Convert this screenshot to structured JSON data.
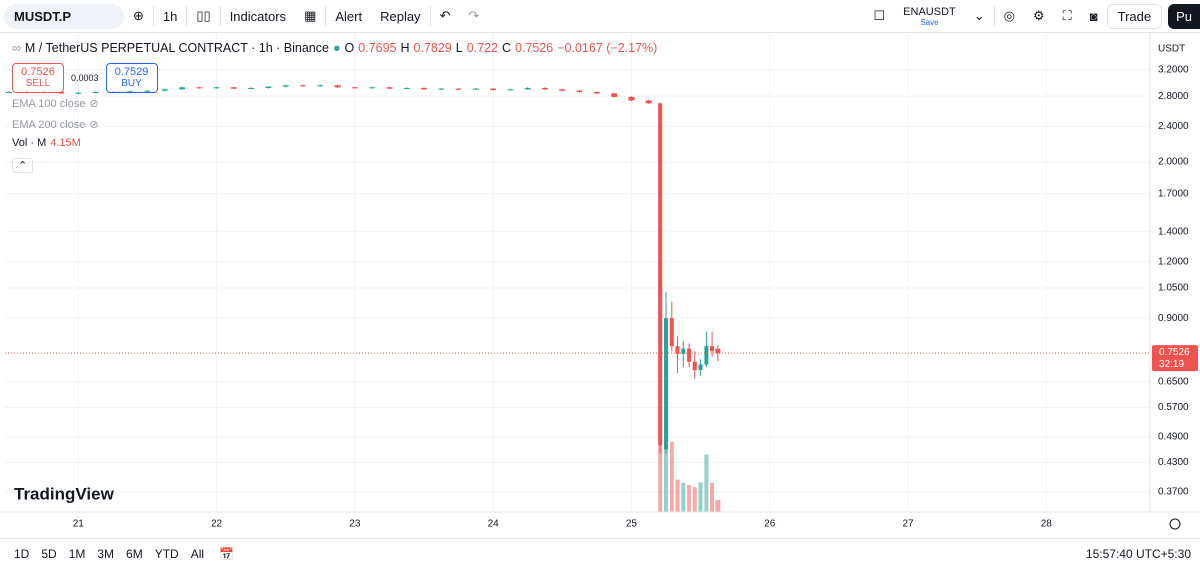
{
  "toolbar": {
    "symbol": "MUSDT.P",
    "interval": "1h",
    "indicators": "Indicators",
    "alert": "Alert",
    "replay": "Replay",
    "watch_symbol": "ENAUSDT",
    "save": "Save",
    "trade": "Trade",
    "cut_button": "Pu"
  },
  "legend": {
    "title": "M / TetherUS PERPETUAL CONTRACT · 1h · Binance",
    "ohlc_labels": [
      "O",
      "H",
      "L",
      "C"
    ],
    "change": "−0.0167 (−2.17%)",
    "sell_price": "0.7526",
    "sell": "SELL",
    "spread": "0.0003",
    "buy_price": "0.7529",
    "buy": "BUY",
    "ema100": "EMA 100 close",
    "ema200": "EMA 200 close",
    "volume": "Vol · M",
    "volume_value": "4.15M"
  },
  "currency": "USDT",
  "countdown": "32:19",
  "logo": "TradingView",
  "ranges": [
    "1D",
    "5D",
    "1M",
    "3M",
    "6M",
    "YTD",
    "All"
  ],
  "clock": "15:57:40 UTC+5:30",
  "chart_data": {
    "type": "candlestick",
    "log_scale": true,
    "grid": true,
    "up_color": "#26a69a",
    "down_color": "#ef5350",
    "xlim": [
      20.47,
      28.75
    ],
    "xticks": [
      21,
      22,
      23,
      24,
      25,
      26,
      27,
      28
    ],
    "ylim": [
      0.334,
      3.77
    ],
    "yticks": [
      {
        "value": 3.2,
        "label": "3.2000"
      },
      {
        "value": 2.8,
        "label": "2.8000"
      },
      {
        "value": 2.4,
        "label": "2.4000"
      },
      {
        "value": 2.0,
        "label": "2.0000"
      },
      {
        "value": 1.7,
        "label": "1.7000"
      },
      {
        "value": 1.4,
        "label": "1.4000"
      },
      {
        "value": 1.2,
        "label": "1.2000"
      },
      {
        "value": 1.05,
        "label": "1.0500"
      },
      {
        "value": 0.9,
        "label": "0.9000"
      },
      {
        "value": 0.65,
        "label": "0.6500"
      },
      {
        "value": 0.57,
        "label": "0.5700"
      },
      {
        "value": 0.49,
        "label": "0.4900"
      },
      {
        "value": 0.43,
        "label": "0.4300"
      },
      {
        "value": 0.37,
        "label": "0.3700"
      }
    ],
    "x": [
      20.5,
      20.625,
      20.75,
      20.875,
      21,
      21.125,
      21.25,
      21.375,
      21.5,
      21.625,
      21.75,
      21.875,
      22,
      22.125,
      22.25,
      22.375,
      22.5,
      22.625,
      22.75,
      22.875,
      23,
      23.125,
      23.25,
      23.375,
      23.5,
      23.625,
      23.75,
      23.875,
      24,
      24.125,
      24.25,
      24.375,
      24.5,
      24.625,
      24.75,
      24.875,
      25,
      25.125,
      25.208,
      25.25,
      25.292,
      25.333,
      25.375,
      25.417,
      25.458,
      25.5,
      25.542,
      25.583,
      25.625
    ],
    "open": [
      2.85,
      2.86,
      2.85,
      2.86,
      2.84,
      2.85,
      2.86,
      2.85,
      2.87,
      2.88,
      2.9,
      2.93,
      2.92,
      2.93,
      2.91,
      2.92,
      2.94,
      2.96,
      2.95,
      2.96,
      2.93,
      2.92,
      2.93,
      2.91,
      2.92,
      2.9,
      2.91,
      2.9,
      2.91,
      2.89,
      2.9,
      2.92,
      2.9,
      2.88,
      2.86,
      2.84,
      2.79,
      2.74,
      2.7,
      0.46,
      0.9,
      0.78,
      0.75,
      0.77,
      0.72,
      0.69,
      0.71,
      0.78,
      0.7695
    ],
    "high": [
      2.87,
      2.87,
      2.87,
      2.87,
      2.86,
      2.87,
      2.87,
      2.88,
      2.89,
      2.91,
      2.94,
      2.94,
      2.94,
      2.94,
      2.93,
      2.95,
      2.97,
      2.97,
      2.97,
      2.97,
      2.94,
      2.94,
      2.94,
      2.93,
      2.93,
      2.92,
      2.92,
      2.92,
      2.92,
      2.91,
      2.93,
      2.93,
      2.91,
      2.89,
      2.87,
      2.85,
      2.8,
      2.75,
      2.71,
      1.03,
      0.98,
      0.82,
      0.8,
      0.79,
      0.76,
      0.73,
      0.84,
      0.84,
      0.7829
    ],
    "low": [
      2.84,
      2.84,
      2.84,
      2.83,
      2.83,
      2.84,
      2.84,
      2.84,
      2.86,
      2.87,
      2.89,
      2.91,
      2.91,
      2.9,
      2.9,
      2.91,
      2.93,
      2.94,
      2.94,
      2.92,
      2.91,
      2.91,
      2.9,
      2.9,
      2.89,
      2.89,
      2.89,
      2.89,
      2.88,
      2.88,
      2.89,
      2.89,
      2.87,
      2.85,
      2.83,
      2.78,
      2.73,
      2.69,
      0.45,
      0.45,
      0.76,
      0.68,
      0.7,
      0.7,
      0.66,
      0.67,
      0.7,
      0.74,
      0.722
    ],
    "close": [
      2.86,
      2.85,
      2.86,
      2.84,
      2.85,
      2.86,
      2.85,
      2.87,
      2.88,
      2.9,
      2.93,
      2.92,
      2.93,
      2.91,
      2.92,
      2.94,
      2.96,
      2.95,
      2.96,
      2.93,
      2.92,
      2.93,
      2.91,
      2.92,
      2.9,
      2.91,
      2.9,
      2.91,
      2.89,
      2.9,
      2.92,
      2.9,
      2.88,
      2.86,
      2.84,
      2.79,
      2.74,
      2.7,
      0.47,
      0.9,
      0.78,
      0.75,
      0.77,
      0.72,
      0.69,
      0.71,
      0.78,
      0.76,
      0.7526
    ],
    "volume": [
      0.1,
      0.1,
      0.1,
      0.1,
      0.1,
      0.1,
      0.1,
      0.1,
      0.1,
      0.1,
      0.1,
      0.1,
      0.1,
      0.1,
      0.1,
      0.1,
      0.1,
      0.1,
      0.1,
      0.1,
      0.1,
      0.1,
      0.1,
      0.1,
      0.1,
      0.1,
      0.1,
      0.1,
      0.1,
      0.1,
      0.1,
      0.1,
      0.1,
      0.1,
      0.1,
      0.1,
      0.1,
      0.1,
      23.2,
      21.5,
      24.0,
      11.1,
      10.0,
      9.3,
      8.5,
      10.2,
      19.7,
      10.0,
      4.15
    ]
  }
}
